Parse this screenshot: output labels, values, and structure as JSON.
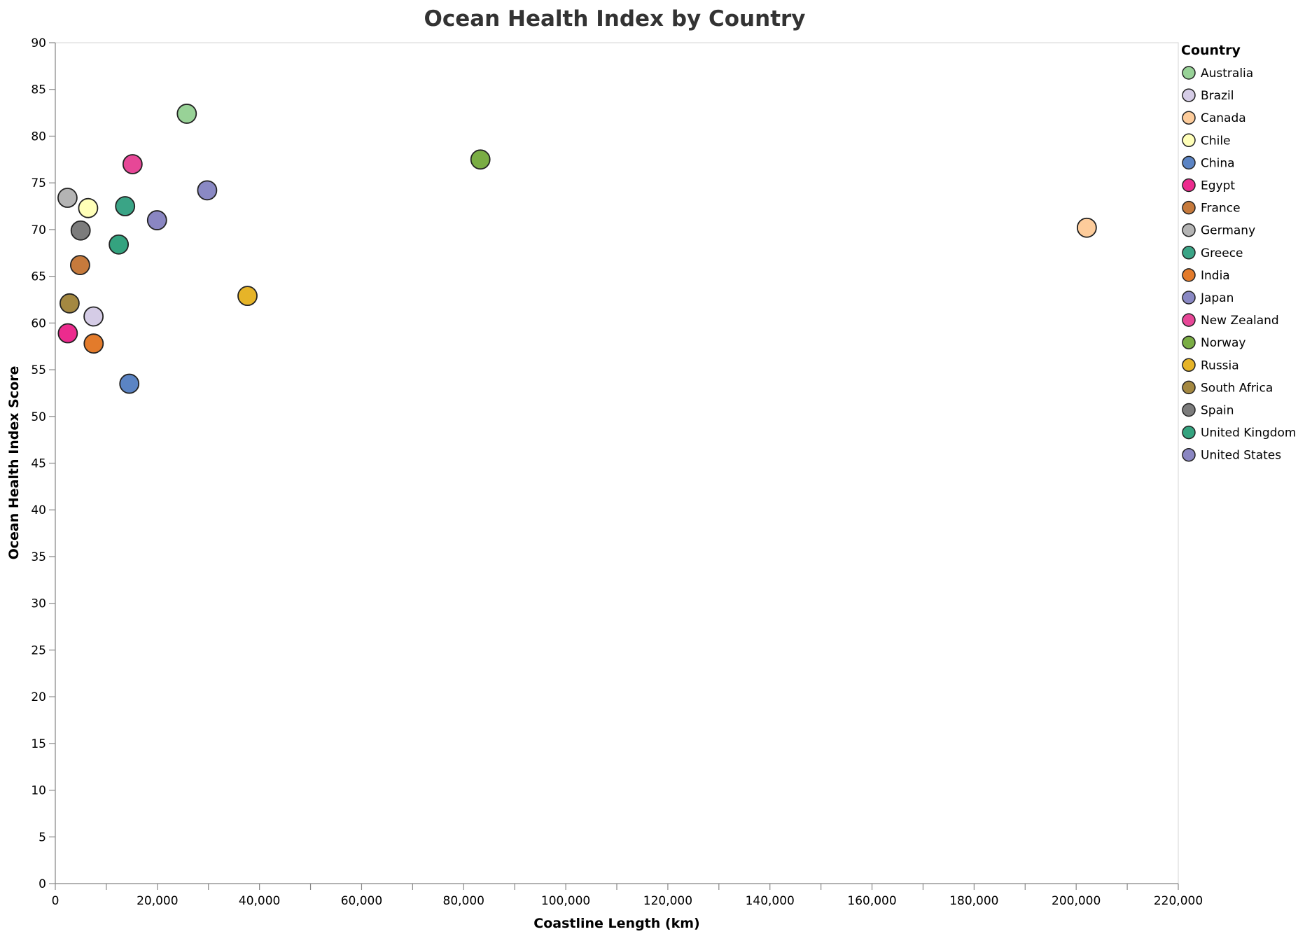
{
  "chart_data": {
    "type": "scatter",
    "title": "Ocean Health Index by Country",
    "xlabel": "Coastline Length (km)",
    "ylabel": "Ocean Health Index Score",
    "xlim": [
      0,
      220000
    ],
    "ylim": [
      0,
      90
    ],
    "x_ticks": [
      0,
      20000,
      40000,
      60000,
      80000,
      100000,
      120000,
      140000,
      160000,
      180000,
      200000,
      220000
    ],
    "x_tick_labels": [
      "0",
      "20,000",
      "40,000",
      "60,000",
      "80,000",
      "100,000",
      "120,000",
      "140,000",
      "160,000",
      "180,000",
      "200,000",
      "220,000"
    ],
    "y_ticks": [
      0,
      5,
      10,
      15,
      20,
      25,
      30,
      35,
      40,
      45,
      50,
      55,
      60,
      65,
      70,
      75,
      80,
      85,
      90
    ],
    "grid": false,
    "legend": {
      "title": "Country",
      "placement": "right"
    },
    "points": [
      {
        "country": "Australia",
        "x": 25760,
        "y": 82.4,
        "color": "#98d297"
      },
      {
        "country": "Brazil",
        "x": 7491,
        "y": 60.7,
        "color": "#d5cce6"
      },
      {
        "country": "Canada",
        "x": 202080,
        "y": 70.2,
        "color": "#fdcc9b"
      },
      {
        "country": "Chile",
        "x": 6435,
        "y": 72.3,
        "color": "#ffffb8"
      },
      {
        "country": "China",
        "x": 14500,
        "y": 53.5,
        "color": "#5b84c4"
      },
      {
        "country": "Egypt",
        "x": 2450,
        "y": 58.9,
        "color": "#ec2b8e"
      },
      {
        "country": "France",
        "x": 4853,
        "y": 66.2,
        "color": "#c67a3c"
      },
      {
        "country": "Germany",
        "x": 2389,
        "y": 73.4,
        "color": "#b4b4b4"
      },
      {
        "country": "Greece",
        "x": 13676,
        "y": 72.5,
        "color": "#3aa486"
      },
      {
        "country": "India",
        "x": 7516,
        "y": 57.8,
        "color": "#e37b2b"
      },
      {
        "country": "Japan",
        "x": 29751,
        "y": 74.2,
        "color": "#8a89c4"
      },
      {
        "country": "New Zealand",
        "x": 15134,
        "y": 77.0,
        "color": "#e74797"
      },
      {
        "country": "Norway",
        "x": 83281,
        "y": 77.5,
        "color": "#7aad44"
      },
      {
        "country": "Russia",
        "x": 37653,
        "y": 62.9,
        "color": "#e6b428"
      },
      {
        "country": "South Africa",
        "x": 2798,
        "y": 62.1,
        "color": "#a48841"
      },
      {
        "country": "Spain",
        "x": 4964,
        "y": 69.9,
        "color": "#7c7c7c"
      },
      {
        "country": "United Kingdom",
        "x": 12429,
        "y": 68.4,
        "color": "#34a37f"
      },
      {
        "country": "United States",
        "x": 19924,
        "y": 71.0,
        "color": "#8a86c2"
      }
    ]
  }
}
